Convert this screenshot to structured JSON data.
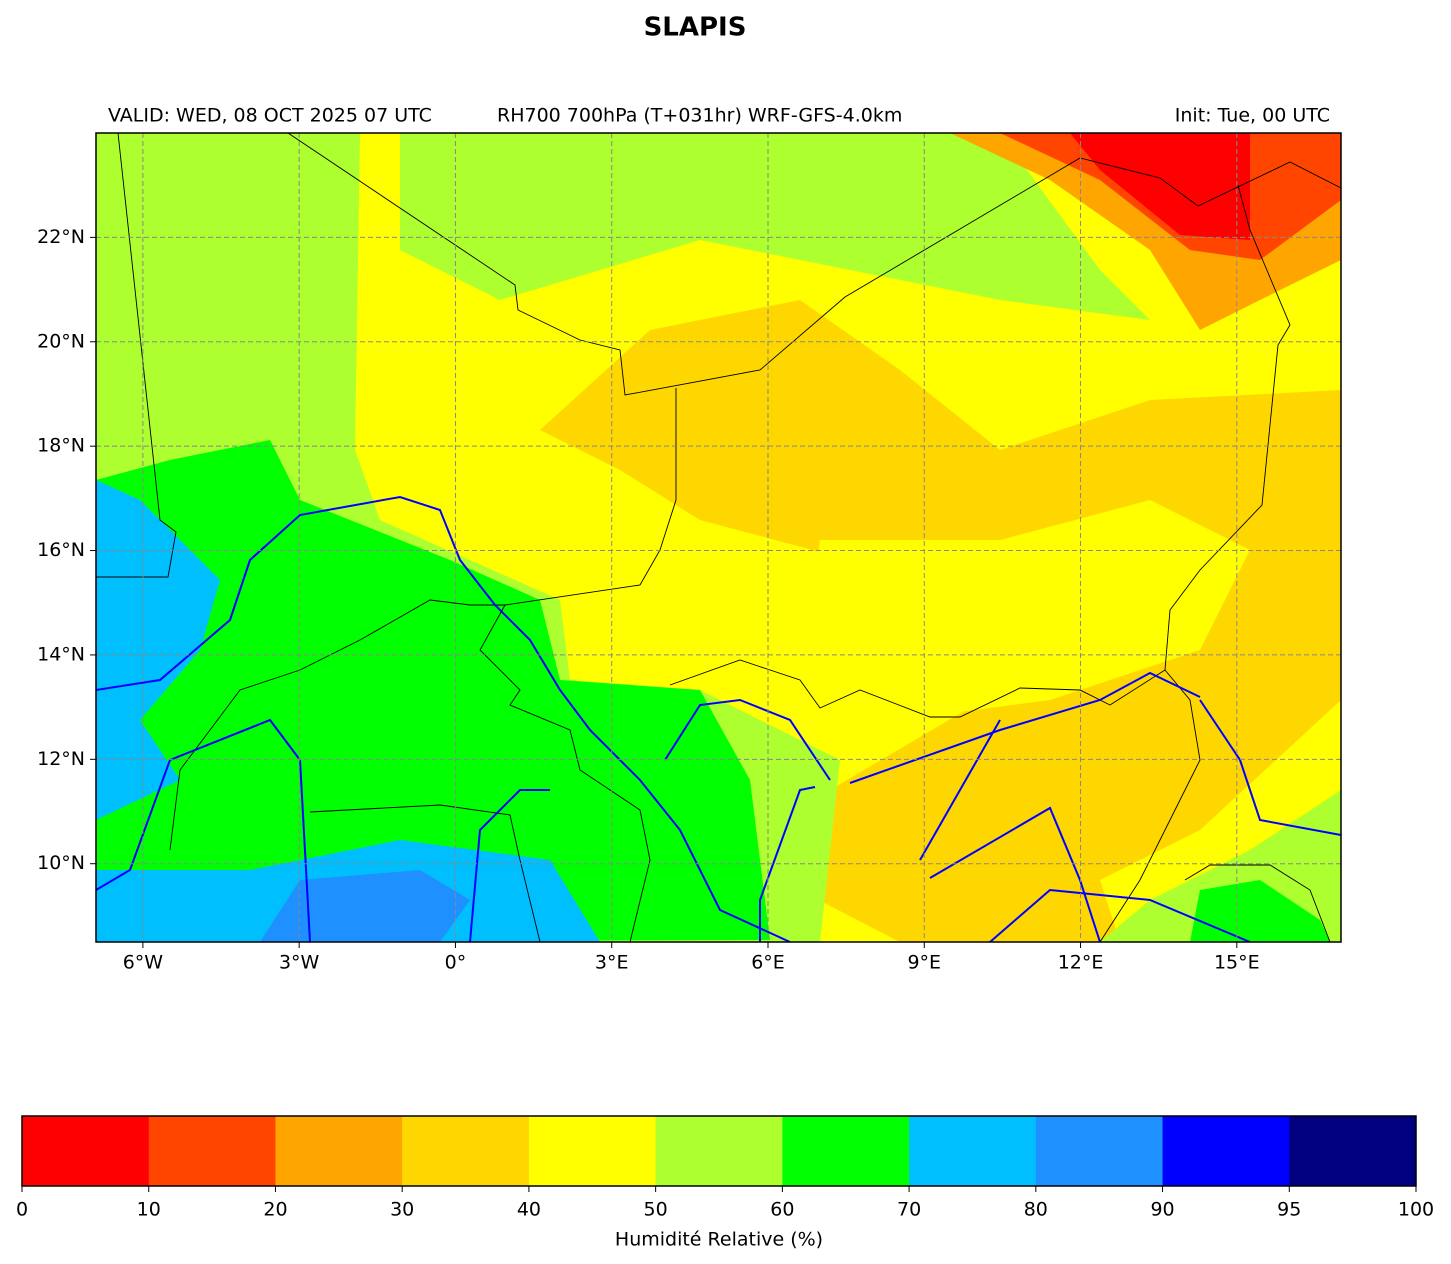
{
  "title": "SLAPIS",
  "header": {
    "valid": "VALID: WED, 08 OCT 2025 07 UTC",
    "product": "RH700 700hPa (T+031hr) WRF-GFS-4.0km",
    "init": "Init: Tue, 00 UTC"
  },
  "map": {
    "xlim": [
      -6.9,
      17
    ],
    "ylim": [
      8.5,
      24
    ],
    "grid": true,
    "xticks": [
      {
        "value": -6,
        "label": "6°W"
      },
      {
        "value": -3,
        "label": "3°W"
      },
      {
        "value": 0,
        "label": "0°"
      },
      {
        "value": 3,
        "label": "3°E"
      },
      {
        "value": 6,
        "label": "6°E"
      },
      {
        "value": 9,
        "label": "9°E"
      },
      {
        "value": 12,
        "label": "12°E"
      },
      {
        "value": 15,
        "label": "15°E"
      }
    ],
    "yticks": [
      {
        "value": 10,
        "label": "10°N"
      },
      {
        "value": 12,
        "label": "12°N"
      },
      {
        "value": 14,
        "label": "14°N"
      },
      {
        "value": 16,
        "label": "16°N"
      },
      {
        "value": 18,
        "label": "18°N"
      },
      {
        "value": 20,
        "label": "20°N"
      },
      {
        "value": 22,
        "label": "22°N"
      }
    ]
  },
  "colorbar": {
    "label": "Humidité Relative (%)",
    "bounds": [
      0,
      10,
      20,
      30,
      40,
      50,
      60,
      70,
      80,
      90,
      95,
      100
    ],
    "colors": [
      "#ff0000",
      "#ff4500",
      "#ffa500",
      "#ffd700",
      "#ffff00",
      "#adff2f",
      "#00ff00",
      "#00bfff",
      "#1e90ff",
      "#0000ff",
      "#000080"
    ]
  }
}
